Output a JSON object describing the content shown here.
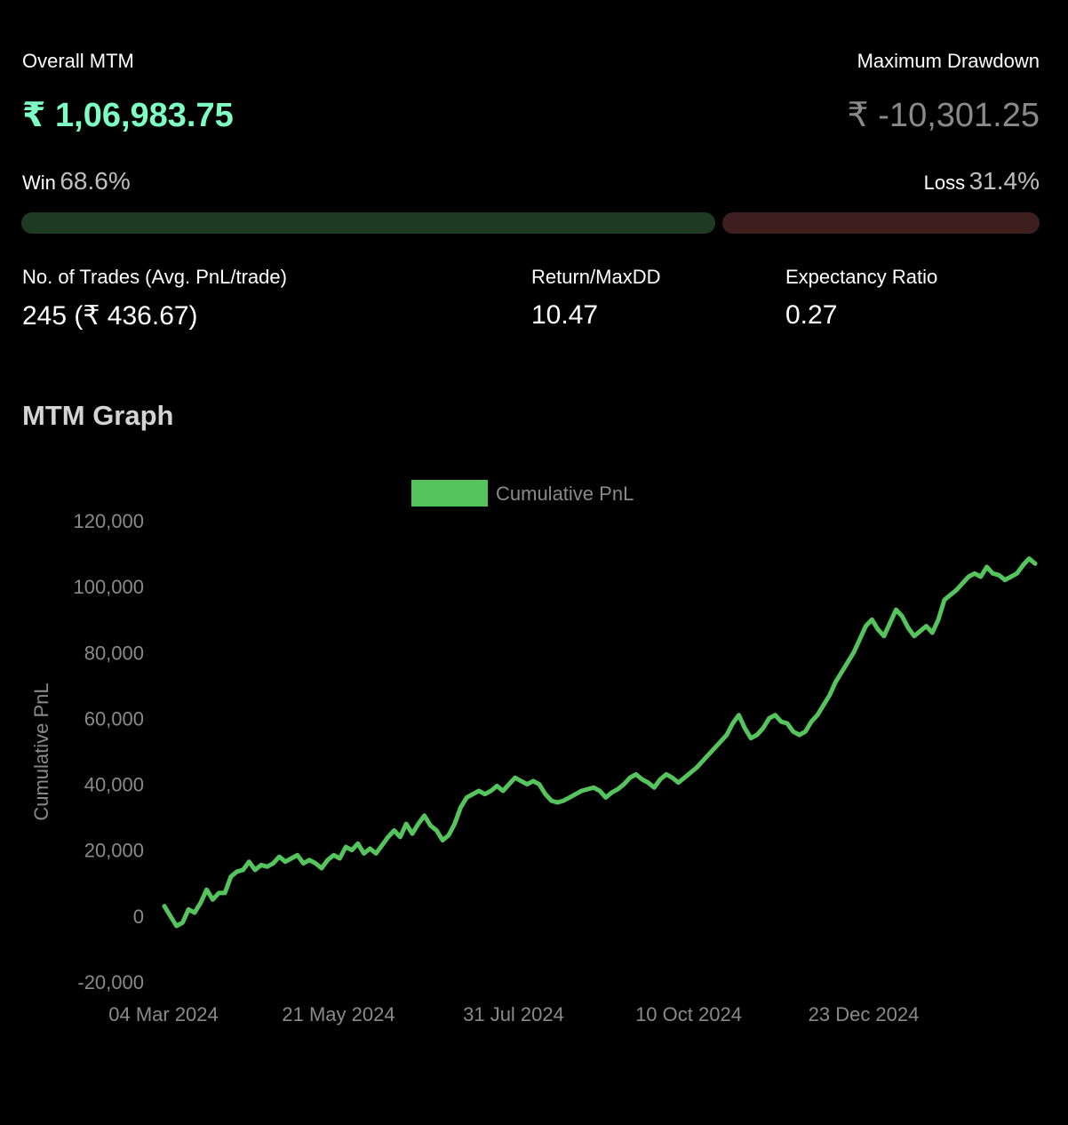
{
  "summary": {
    "overall_mtm_label": "Overall MTM",
    "overall_mtm_value": "₹ 1,06,983.75",
    "max_drawdown_label": "Maximum Drawdown",
    "max_drawdown_value": "₹ -10,301.25",
    "win_label": "Win",
    "win_pct": "68.6%",
    "win_fraction": 0.686,
    "loss_label": "Loss",
    "loss_pct": "31.4%",
    "loss_fraction": 0.314,
    "trades_label": "No. of Trades (Avg. PnL/trade)",
    "trades_value": "245 (₹ 436.67)",
    "return_maxdd_label": "Return/MaxDD",
    "return_maxdd_value": "10.47",
    "expectancy_label": "Expectancy Ratio",
    "expectancy_value": "0.27"
  },
  "graph_section": {
    "title": "MTM Graph"
  },
  "colors": {
    "positive": "#7dffc4",
    "drawdown": "#8a8a8a",
    "win_bar": "#1f3a22",
    "loss_bar": "#3d1f1f",
    "line": "#56c45d",
    "axis_text": "#8a8a8a"
  },
  "chart_data": {
    "type": "line",
    "title": "",
    "xlabel": "",
    "ylabel": "Cumulative PnL",
    "legend": "top-center",
    "grid": false,
    "ylim": [
      -20000,
      120000
    ],
    "yticks": [
      "120,000",
      "100,000",
      "80,000",
      "60,000",
      "40,000",
      "20,000",
      "0",
      "-20,000"
    ],
    "xticks": [
      "04 Mar 2024",
      "21 May 2024",
      "31 Jul 2024",
      "10 Oct 2024",
      "23 Dec 2024"
    ],
    "series": [
      {
        "name": "Cumulative PnL",
        "values": [
          3000,
          0,
          -3000,
          -2000,
          2000,
          1000,
          4000,
          8000,
          5000,
          7000,
          7000,
          12000,
          13500,
          14000,
          16500,
          14000,
          15500,
          15000,
          16000,
          18000,
          16500,
          17500,
          18500,
          16000,
          17000,
          16000,
          14500,
          17000,
          18500,
          17500,
          21000,
          20000,
          22000,
          19000,
          20500,
          19000,
          21500,
          24000,
          26000,
          24000,
          28000,
          25000,
          28000,
          30500,
          27500,
          26000,
          23000,
          24500,
          28000,
          33000,
          36000,
          37000,
          38000,
          37000,
          38000,
          39500,
          38000,
          40000,
          42000,
          41000,
          40000,
          41000,
          40000,
          37000,
          35000,
          34500,
          35000,
          36000,
          37000,
          38000,
          38500,
          39000,
          38000,
          36000,
          37500,
          38500,
          40000,
          42000,
          43000,
          41500,
          40500,
          39000,
          41500,
          43000,
          42000,
          40500,
          42000,
          43500,
          45000,
          47000,
          49000,
          51000,
          53000,
          55000,
          58500,
          61000,
          57000,
          54000,
          55000,
          57000,
          60000,
          61000,
          59000,
          58500,
          56000,
          55000,
          56000,
          59000,
          61000,
          64000,
          67000,
          71000,
          74000,
          77000,
          80000,
          84000,
          88000,
          90000,
          87000,
          85000,
          89000,
          93000,
          91000,
          87500,
          85000,
          86500,
          88000,
          86000,
          90000,
          96000,
          97500,
          99000,
          101000,
          103000,
          104000,
          103000,
          106000,
          104000,
          103500,
          102000,
          103000,
          104000,
          106500,
          108500,
          106983.75
        ]
      }
    ]
  }
}
